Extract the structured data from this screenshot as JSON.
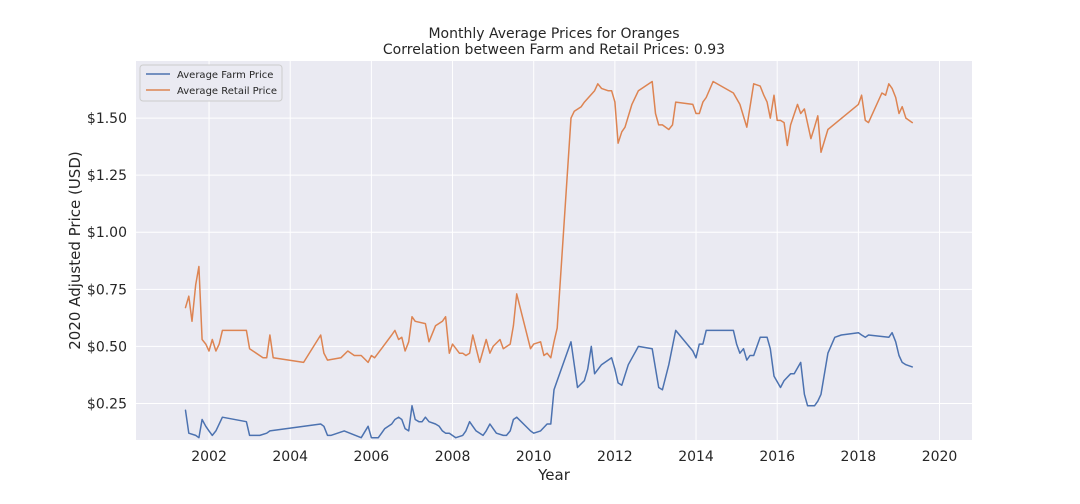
{
  "chart_data": {
    "type": "line",
    "title": "Monthly Average Prices for Oranges",
    "subtitle": "Correlation between Farm and Retail Prices: 0.93",
    "xlabel": "Year",
    "ylabel": "2020 Adjusted Price (USD)",
    "xlim": [
      2000.2,
      2020.8
    ],
    "ylim": [
      0.09,
      1.75
    ],
    "xticks": [
      2002,
      2004,
      2006,
      2008,
      2010,
      2012,
      2014,
      2016,
      2018,
      2020
    ],
    "xtick_labels": [
      "2002",
      "2004",
      "2006",
      "2008",
      "2010",
      "2012",
      "2014",
      "2016",
      "2018",
      "2020"
    ],
    "yticks": [
      0.25,
      0.5,
      0.75,
      1.0,
      1.25,
      1.5
    ],
    "ytick_labels": [
      "$0.25",
      "$0.50",
      "$0.75",
      "$1.00",
      "$1.25",
      "$1.50"
    ],
    "grid": true,
    "legend_position": "top-left",
    "series": [
      {
        "name": "Average Farm Price",
        "color": "#4c72b0",
        "x": [
          2001.42,
          2001.5,
          2001.67,
          2001.75,
          2001.83,
          2001.92,
          2002.0,
          2002.08,
          2002.17,
          2002.33,
          2002.92,
          2003.0,
          2003.25,
          2003.42,
          2003.5,
          2004.75,
          2004.83,
          2004.92,
          2005.0,
          2005.33,
          2005.75,
          2005.92,
          2006.0,
          2006.17,
          2006.33,
          2006.5,
          2006.58,
          2006.67,
          2006.75,
          2006.83,
          2006.92,
          2007.0,
          2007.08,
          2007.17,
          2007.25,
          2007.33,
          2007.42,
          2007.58,
          2007.67,
          2007.75,
          2007.83,
          2007.92,
          2008.08,
          2008.25,
          2008.33,
          2008.42,
          2008.5,
          2008.58,
          2008.75,
          2008.83,
          2008.92,
          2009.0,
          2009.08,
          2009.25,
          2009.33,
          2009.42,
          2009.5,
          2009.58,
          2009.92,
          2010.0,
          2010.17,
          2010.33,
          2010.42,
          2010.5,
          2010.58,
          2010.92,
          2011.08,
          2011.25,
          2011.33,
          2011.42,
          2011.5,
          2011.67,
          2011.92,
          2012.0,
          2012.08,
          2012.17,
          2012.33,
          2012.58,
          2012.92,
          2013.08,
          2013.17,
          2013.33,
          2013.5,
          2013.92,
          2014.0,
          2014.08,
          2014.17,
          2014.25,
          2014.42,
          2014.58,
          2014.92,
          2015.0,
          2015.08,
          2015.17,
          2015.25,
          2015.33,
          2015.42,
          2015.58,
          2015.75,
          2015.83,
          2015.92,
          2016.08,
          2016.17,
          2016.33,
          2016.42,
          2016.58,
          2016.67,
          2016.75,
          2016.92,
          2017.0,
          2017.08,
          2017.25,
          2017.42,
          2017.58,
          2018.0,
          2018.08,
          2018.17,
          2018.25,
          2018.75,
          2018.83,
          2018.92,
          2019.0,
          2019.08,
          2019.17,
          2019.33
        ],
        "y": [
          0.22,
          0.12,
          0.11,
          0.1,
          0.18,
          0.15,
          0.13,
          0.11,
          0.13,
          0.19,
          0.17,
          0.11,
          0.11,
          0.12,
          0.13,
          0.16,
          0.15,
          0.11,
          0.11,
          0.13,
          0.1,
          0.15,
          0.1,
          0.1,
          0.14,
          0.16,
          0.18,
          0.19,
          0.18,
          0.14,
          0.13,
          0.24,
          0.18,
          0.17,
          0.17,
          0.19,
          0.17,
          0.16,
          0.15,
          0.13,
          0.12,
          0.12,
          0.1,
          0.11,
          0.13,
          0.17,
          0.15,
          0.13,
          0.11,
          0.13,
          0.16,
          0.14,
          0.12,
          0.11,
          0.11,
          0.13,
          0.18,
          0.19,
          0.13,
          0.12,
          0.13,
          0.16,
          0.16,
          0.31,
          0.35,
          0.52,
          0.32,
          0.35,
          0.4,
          0.5,
          0.38,
          0.42,
          0.45,
          0.4,
          0.34,
          0.33,
          0.42,
          0.5,
          0.49,
          0.32,
          0.31,
          0.42,
          0.57,
          0.48,
          0.45,
          0.51,
          0.51,
          0.57,
          0.57,
          0.57,
          0.57,
          0.51,
          0.47,
          0.49,
          0.44,
          0.46,
          0.46,
          0.54,
          0.54,
          0.49,
          0.37,
          0.32,
          0.35,
          0.38,
          0.38,
          0.43,
          0.29,
          0.24,
          0.24,
          0.26,
          0.29,
          0.47,
          0.54,
          0.55,
          0.56,
          0.55,
          0.54,
          0.55,
          0.54,
          0.56,
          0.52,
          0.46,
          0.43,
          0.42,
          0.41
        ]
      },
      {
        "name": "Average Retail Price",
        "color": "#dd8452",
        "x": [
          2001.42,
          2001.5,
          2001.58,
          2001.67,
          2001.75,
          2001.83,
          2001.92,
          2002.0,
          2002.08,
          2002.17,
          2002.25,
          2002.33,
          2002.92,
          2003.0,
          2003.33,
          2003.42,
          2003.5,
          2003.58,
          2004.33,
          2004.75,
          2004.83,
          2004.92,
          2005.25,
          2005.42,
          2005.58,
          2005.75,
          2005.92,
          2006.0,
          2006.08,
          2006.25,
          2006.5,
          2006.58,
          2006.67,
          2006.75,
          2006.83,
          2006.92,
          2007.0,
          2007.08,
          2007.33,
          2007.42,
          2007.58,
          2007.75,
          2007.83,
          2007.92,
          2008.0,
          2008.17,
          2008.25,
          2008.33,
          2008.42,
          2008.5,
          2008.67,
          2008.83,
          2008.92,
          2009.0,
          2009.17,
          2009.25,
          2009.42,
          2009.5,
          2009.58,
          2009.92,
          2010.0,
          2010.17,
          2010.25,
          2010.33,
          2010.42,
          2010.5,
          2010.58,
          2010.92,
          2011.0,
          2011.17,
          2011.25,
          2011.5,
          2011.58,
          2011.67,
          2011.83,
          2011.92,
          2012.0,
          2012.08,
          2012.17,
          2012.25,
          2012.42,
          2012.58,
          2012.92,
          2013.0,
          2013.08,
          2013.17,
          2013.33,
          2013.42,
          2013.5,
          2013.92,
          2014.0,
          2014.08,
          2014.17,
          2014.25,
          2014.42,
          2014.92,
          2015.08,
          2015.25,
          2015.42,
          2015.58,
          2015.67,
          2015.75,
          2015.83,
          2015.92,
          2016.0,
          2016.08,
          2016.17,
          2016.25,
          2016.33,
          2016.5,
          2016.58,
          2016.67,
          2016.83,
          2016.92,
          2017.0,
          2017.08,
          2017.25,
          2018.0,
          2018.08,
          2018.17,
          2018.25,
          2018.58,
          2018.67,
          2018.75,
          2018.83,
          2018.92,
          2019.0,
          2019.08,
          2019.17,
          2019.33
        ],
        "y": [
          0.67,
          0.72,
          0.61,
          0.77,
          0.85,
          0.53,
          0.51,
          0.48,
          0.53,
          0.48,
          0.51,
          0.57,
          0.57,
          0.49,
          0.45,
          0.45,
          0.55,
          0.45,
          0.43,
          0.55,
          0.47,
          0.44,
          0.45,
          0.48,
          0.46,
          0.46,
          0.43,
          0.46,
          0.45,
          0.49,
          0.55,
          0.57,
          0.53,
          0.54,
          0.48,
          0.52,
          0.63,
          0.61,
          0.6,
          0.52,
          0.59,
          0.61,
          0.63,
          0.47,
          0.51,
          0.47,
          0.47,
          0.46,
          0.47,
          0.55,
          0.43,
          0.53,
          0.47,
          0.5,
          0.53,
          0.49,
          0.51,
          0.59,
          0.73,
          0.49,
          0.51,
          0.52,
          0.46,
          0.47,
          0.45,
          0.52,
          0.58,
          1.5,
          1.53,
          1.55,
          1.57,
          1.62,
          1.65,
          1.63,
          1.62,
          1.62,
          1.57,
          1.39,
          1.44,
          1.46,
          1.56,
          1.62,
          1.66,
          1.52,
          1.47,
          1.47,
          1.45,
          1.47,
          1.57,
          1.56,
          1.52,
          1.52,
          1.57,
          1.59,
          1.66,
          1.61,
          1.56,
          1.46,
          1.65,
          1.64,
          1.6,
          1.57,
          1.5,
          1.6,
          1.49,
          1.49,
          1.48,
          1.38,
          1.47,
          1.56,
          1.52,
          1.54,
          1.41,
          1.46,
          1.51,
          1.35,
          1.45,
          1.56,
          1.6,
          1.49,
          1.48,
          1.61,
          1.6,
          1.65,
          1.63,
          1.59,
          1.52,
          1.55,
          1.5,
          1.48
        ]
      }
    ]
  }
}
